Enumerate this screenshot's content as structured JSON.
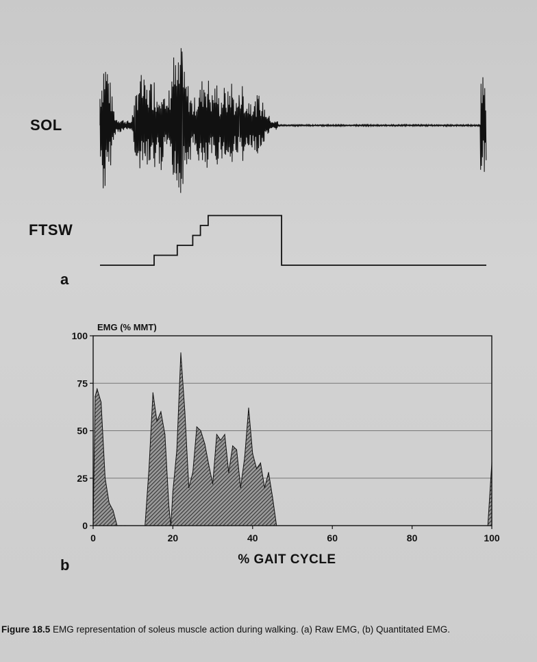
{
  "panel_a": {
    "trace_sol": "SOL",
    "trace_ftsw": "FTSW",
    "panel_letter": "a"
  },
  "panel_b": {
    "panel_letter": "b"
  },
  "caption": {
    "label": "Figure 18.5",
    "text": "EMG representation of soleus muscle action during walking. (a) Raw EMG, (b) Quantitated EMG."
  },
  "colors": {
    "ink": "#111111",
    "fill": "#3a3a3a",
    "background": "#cfcfcf"
  },
  "chart_data": [
    {
      "type": "line",
      "series": [
        {
          "name": "SOL",
          "x": [
            0,
            1,
            2,
            3,
            4,
            8,
            9,
            10,
            12,
            14,
            15,
            16,
            17,
            18,
            19,
            20,
            21,
            22,
            23,
            24,
            25,
            26,
            27,
            28,
            29,
            30,
            31,
            32,
            33,
            34,
            35,
            36,
            37,
            38,
            39,
            40,
            41,
            42,
            43,
            44,
            45,
            100
          ],
          "y": [
            0.5,
            0.9,
            0.8,
            0.4,
            0.1,
            0.05,
            0.3,
            0.7,
            0.5,
            0.6,
            0.4,
            0.8,
            0.2,
            0.5,
            0.9,
            0.7,
            1.0,
            0.6,
            0.5,
            0.3,
            0.4,
            0.5,
            0.7,
            0.6,
            0.4,
            0.6,
            0.3,
            0.5,
            0.4,
            0.6,
            0.3,
            0.4,
            0.5,
            0.3,
            0.4,
            0.3,
            0.4,
            0.3,
            0.2,
            0.1,
            0.05,
            0.6
          ]
        },
        {
          "name": "FTSW",
          "x": [
            0,
            14,
            14,
            20,
            20,
            24,
            24,
            26,
            26,
            28,
            28,
            47,
            47,
            100
          ],
          "y": [
            0,
            0,
            1,
            1,
            2,
            2,
            3,
            3,
            4,
            4,
            5,
            5,
            0,
            0
          ]
        }
      ]
    },
    {
      "type": "area",
      "title": "EMG (% MMT)",
      "xlabel": "% GAIT CYCLE",
      "ylabel": "",
      "xlim": [
        0,
        100
      ],
      "ylim": [
        0,
        100
      ],
      "xticks": [
        0,
        20,
        40,
        60,
        80,
        100
      ],
      "yticks": [
        0,
        25,
        50,
        75,
        100
      ],
      "grid": "horizontal",
      "series": [
        {
          "name": "EMG",
          "x": [
            0,
            0.5,
            1,
            2,
            3,
            4,
            5,
            6,
            7,
            8,
            13,
            14,
            15,
            16,
            17,
            18,
            19,
            19.5,
            20,
            21,
            22,
            23,
            24,
            25,
            26,
            27,
            28,
            29,
            30,
            31,
            32,
            33,
            34,
            35,
            36,
            37,
            38,
            39,
            40,
            41,
            42,
            43,
            44,
            45,
            46,
            99,
            100
          ],
          "y": [
            0,
            68,
            72,
            65,
            25,
            12,
            8,
            0,
            0,
            0,
            0,
            30,
            70,
            55,
            60,
            48,
            10,
            0,
            18,
            40,
            91,
            60,
            20,
            28,
            52,
            50,
            43,
            32,
            22,
            48,
            45,
            48,
            28,
            42,
            40,
            20,
            36,
            62,
            38,
            30,
            33,
            20,
            28,
            15,
            0,
            0,
            33
          ]
        }
      ]
    }
  ]
}
